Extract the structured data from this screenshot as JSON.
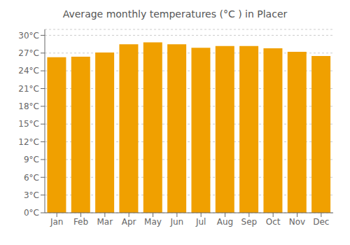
{
  "chart_data": {
    "type": "bar",
    "title": "Average monthly temperatures (°C ) in Placer",
    "categories": [
      "Jan",
      "Feb",
      "Mar",
      "Apr",
      "May",
      "Jun",
      "Jul",
      "Aug",
      "Sep",
      "Oct",
      "Nov",
      "Dec"
    ],
    "values": [
      26.3,
      26.4,
      27.1,
      28.5,
      28.8,
      28.5,
      27.9,
      28.2,
      28.2,
      27.8,
      27.2,
      26.5
    ],
    "color": "#F0A000",
    "ylim": [
      0,
      31
    ],
    "yticks": [
      {
        "value": 0,
        "label": "0°C"
      },
      {
        "value": 3,
        "label": "3°C"
      },
      {
        "value": 6,
        "label": "6°C"
      },
      {
        "value": 9,
        "label": "9°C"
      },
      {
        "value": 12,
        "label": "12°C"
      },
      {
        "value": 15,
        "label": "15°C"
      },
      {
        "value": 18,
        "label": "18°C"
      },
      {
        "value": 21,
        "label": "21°C"
      },
      {
        "value": 24,
        "label": "24°C"
      },
      {
        "value": 27,
        "label": "27°C"
      },
      {
        "value": 30,
        "label": "30°C"
      }
    ],
    "grid": true
  }
}
